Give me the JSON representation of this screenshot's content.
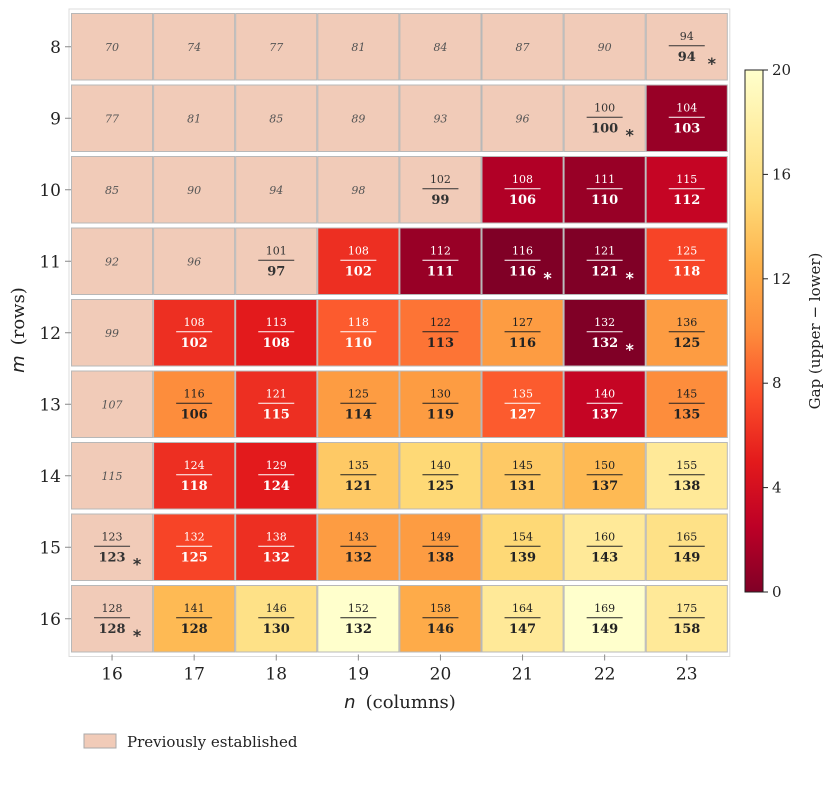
{
  "chart_data": {
    "type": "heatmap",
    "xlabel": "n  (columns)",
    "xlabel_var": "n",
    "xlabel_rest": "(columns)",
    "ylabel": "m  (rows)",
    "ylabel_var": "m",
    "ylabel_rest": "(rows)",
    "colorbar_label": "Gap  (upper − lower)",
    "colorbar_range": [
      0,
      20
    ],
    "colorbar_ticks": [
      0,
      4,
      8,
      12,
      16,
      20
    ],
    "colormap": "YlOrRd_r",
    "previously_established_color": "#f1cbb8",
    "legend": {
      "label": "Previously established",
      "placement": "bottom-left"
    },
    "columns": [
      16,
      17,
      18,
      19,
      20,
      21,
      22,
      23
    ],
    "rows": [
      8,
      9,
      10,
      11,
      12,
      13,
      14,
      15,
      16
    ],
    "cells": [
      [
        {
          "single": 70
        },
        {
          "single": 74
        },
        {
          "single": 77
        },
        {
          "single": 81
        },
        {
          "single": 84
        },
        {
          "single": 87
        },
        {
          "single": 90
        },
        {
          "upper": 94,
          "lower": 94,
          "established": true,
          "star": true
        }
      ],
      [
        {
          "single": 77
        },
        {
          "single": 81
        },
        {
          "single": 85
        },
        {
          "single": 89
        },
        {
          "single": 93
        },
        {
          "single": 96
        },
        {
          "upper": 100,
          "lower": 100,
          "established": true,
          "star": true
        },
        {
          "upper": 104,
          "lower": 103
        }
      ],
      [
        {
          "single": 85
        },
        {
          "single": 90
        },
        {
          "single": 94
        },
        {
          "single": 98
        },
        {
          "upper": 102,
          "lower": 99,
          "established": true
        },
        {
          "upper": 108,
          "lower": 106
        },
        {
          "upper": 111,
          "lower": 110
        },
        {
          "upper": 115,
          "lower": 112
        }
      ],
      [
        {
          "single": 92
        },
        {
          "single": 96
        },
        {
          "upper": 101,
          "lower": 97,
          "established": true
        },
        {
          "upper": 108,
          "lower": 102
        },
        {
          "upper": 112,
          "lower": 111
        },
        {
          "upper": 116,
          "lower": 116,
          "star": true
        },
        {
          "upper": 121,
          "lower": 121,
          "star": true
        },
        {
          "upper": 125,
          "lower": 118
        }
      ],
      [
        {
          "single": 99
        },
        {
          "upper": 108,
          "lower": 102
        },
        {
          "upper": 113,
          "lower": 108
        },
        {
          "upper": 118,
          "lower": 110
        },
        {
          "upper": 122,
          "lower": 113
        },
        {
          "upper": 127,
          "lower": 116
        },
        {
          "upper": 132,
          "lower": 132,
          "star": true
        },
        {
          "upper": 136,
          "lower": 125
        }
      ],
      [
        {
          "single": 107
        },
        {
          "upper": 116,
          "lower": 106
        },
        {
          "upper": 121,
          "lower": 115
        },
        {
          "upper": 125,
          "lower": 114
        },
        {
          "upper": 130,
          "lower": 119
        },
        {
          "upper": 135,
          "lower": 127
        },
        {
          "upper": 140,
          "lower": 137
        },
        {
          "upper": 145,
          "lower": 135
        }
      ],
      [
        {
          "single": 115
        },
        {
          "upper": 124,
          "lower": 118
        },
        {
          "upper": 129,
          "lower": 124
        },
        {
          "upper": 135,
          "lower": 121
        },
        {
          "upper": 140,
          "lower": 125
        },
        {
          "upper": 145,
          "lower": 131
        },
        {
          "upper": 150,
          "lower": 137
        },
        {
          "upper": 155,
          "lower": 138
        }
      ],
      [
        {
          "upper": 123,
          "lower": 123,
          "established": true,
          "star": true
        },
        {
          "upper": 132,
          "lower": 125
        },
        {
          "upper": 138,
          "lower": 132
        },
        {
          "upper": 143,
          "lower": 132
        },
        {
          "upper": 149,
          "lower": 138
        },
        {
          "upper": 154,
          "lower": 139
        },
        {
          "upper": 160,
          "lower": 143
        },
        {
          "upper": 165,
          "lower": 149
        }
      ],
      [
        {
          "upper": 128,
          "lower": 128,
          "established": true,
          "star": true
        },
        {
          "upper": 141,
          "lower": 128
        },
        {
          "upper": 146,
          "lower": 130
        },
        {
          "upper": 152,
          "lower": 132
        },
        {
          "upper": 158,
          "lower": 146
        },
        {
          "upper": 164,
          "lower": 147
        },
        {
          "upper": 169,
          "lower": 149
        },
        {
          "upper": 175,
          "lower": 158
        }
      ]
    ]
  }
}
